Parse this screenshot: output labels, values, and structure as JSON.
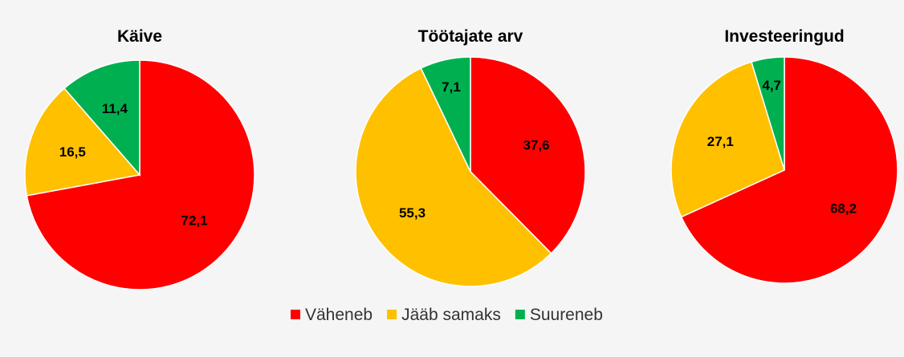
{
  "chart_data": [
    {
      "type": "pie",
      "title": "Käive",
      "series": [
        {
          "name": "Väheneb",
          "value": 72.1,
          "label": "72,1"
        },
        {
          "name": "Jääb samaks",
          "value": 16.5,
          "label": "16,5"
        },
        {
          "name": "Suureneb",
          "value": 11.4,
          "label": "11,4"
        }
      ]
    },
    {
      "type": "pie",
      "title": "Töötajate arv",
      "series": [
        {
          "name": "Väheneb",
          "value": 37.6,
          "label": "37,6"
        },
        {
          "name": "Jääb samaks",
          "value": 55.3,
          "label": "55,3"
        },
        {
          "name": "Suureneb",
          "value": 7.1,
          "label": "7,1"
        }
      ]
    },
    {
      "type": "pie",
      "title": "Investeeringud",
      "series": [
        {
          "name": "Väheneb",
          "value": 68.2,
          "label": "68,2"
        },
        {
          "name": "Jääb samaks",
          "value": 27.1,
          "label": "27,1"
        },
        {
          "name": "Suureneb",
          "value": 4.7,
          "label": "4,7"
        }
      ]
    }
  ],
  "legend": {
    "position": "bottom",
    "items": [
      {
        "label": "Väheneb",
        "color": "#ff0000"
      },
      {
        "label": "Jääb samaks",
        "color": "#ffc000"
      },
      {
        "label": "Suureneb",
        "color": "#00b050"
      }
    ]
  }
}
